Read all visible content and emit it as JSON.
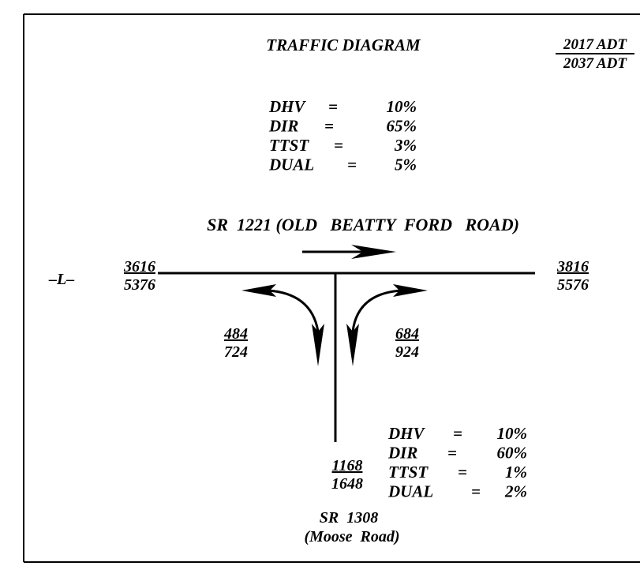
{
  "title": "TRAFFIC DIAGRAM",
  "legend": {
    "top": "2017 ADT",
    "bottom": "2037 ADT"
  },
  "equals": "=",
  "top_factors": [
    {
      "name": "DHV",
      "value": "10%"
    },
    {
      "name": "DIR",
      "value": "65%"
    },
    {
      "name": "TTST",
      "value": "3%"
    },
    {
      "name": "DUAL",
      "value": "5%"
    }
  ],
  "main_road": {
    "name": "SR  1221 (OLD   BEATTY  FORD   ROAD)",
    "line_label": "–L–"
  },
  "volumes": {
    "west": {
      "top": "3616",
      "bottom": "5376"
    },
    "east": {
      "top": "3816",
      "bottom": "5576"
    },
    "left_turn": {
      "top": "484",
      "bottom": "724"
    },
    "right_turn": {
      "top": "684",
      "bottom": "924"
    },
    "south": {
      "top": "1168",
      "bottom": "1648"
    }
  },
  "bottom_factors": [
    {
      "name": "DHV",
      "value": "10%"
    },
    {
      "name": "DIR",
      "value": "60%"
    },
    {
      "name": "TTST",
      "value": "1%"
    },
    {
      "name": "DUAL",
      "value": "2%"
    }
  ],
  "side_road": {
    "name": "SR  1308",
    "alias": "(Moose  Road)"
  }
}
